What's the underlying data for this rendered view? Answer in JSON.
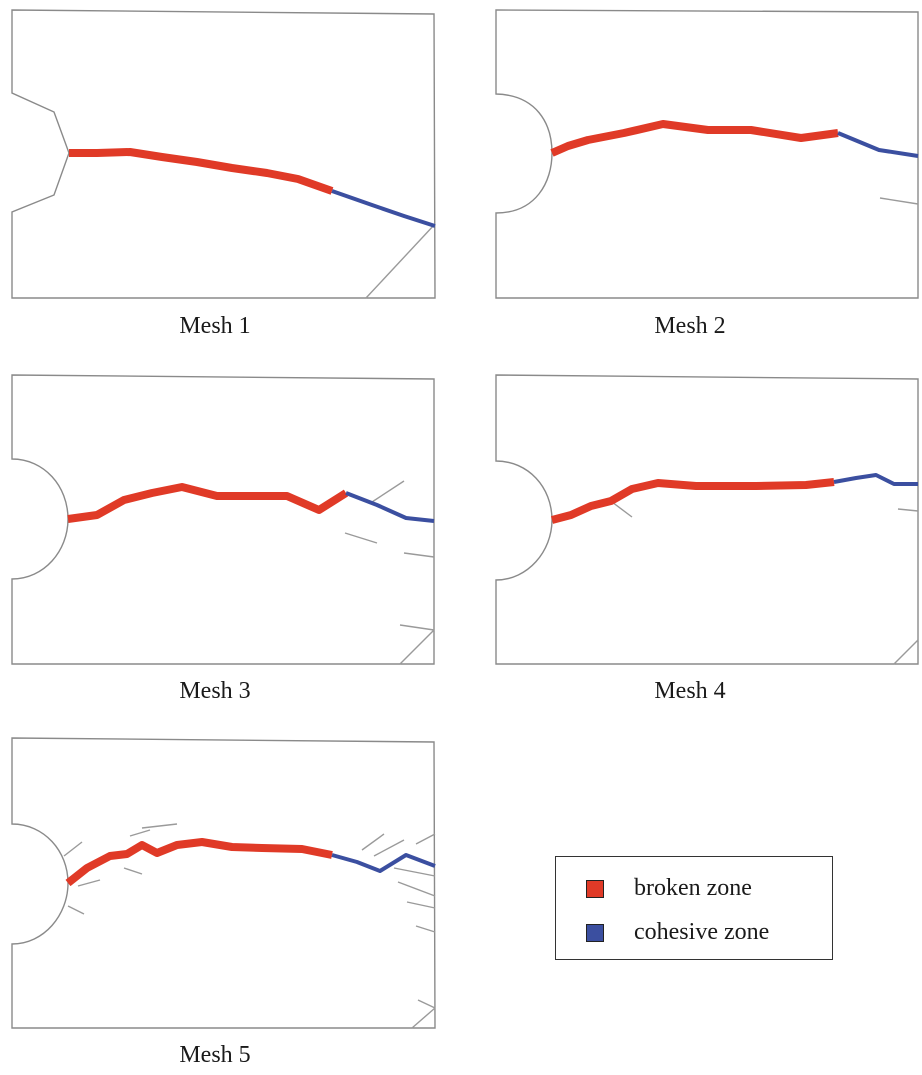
{
  "colors": {
    "broken": "#e03a27",
    "cohesive": "#3b4fa0",
    "outline": "#8a8a8a"
  },
  "meshes": [
    {
      "caption": "Mesh 1"
    },
    {
      "caption": "Mesh 2"
    },
    {
      "caption": "Mesh 3"
    },
    {
      "caption": "Mesh 4"
    },
    {
      "caption": "Mesh 5"
    }
  ],
  "legend": {
    "broken_label": "broken zone",
    "cohesive_label": "cohesive zone"
  }
}
